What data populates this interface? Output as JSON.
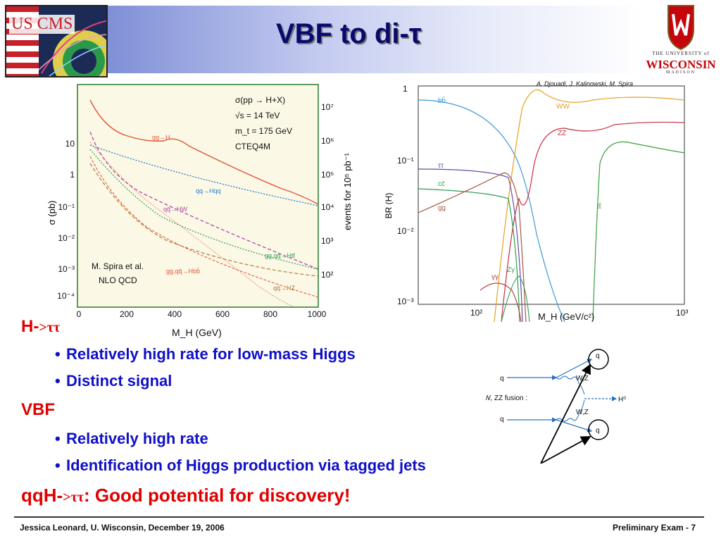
{
  "slide": {
    "title": "VBF to di-τ",
    "logo_left_text": "US CMS",
    "logo_right_line1": "THE UNIVERSITY of",
    "logo_right_line2": "WISCONSIN",
    "logo_right_line3": "MADISON"
  },
  "left_plot": {
    "legend_lines": [
      "σ(pp → H+X)",
      "√s = 14 TeV",
      "m_t = 175 GeV",
      "CTEQ4M"
    ],
    "credit_lines": [
      "M. Spira et al.",
      "NLO  QCD"
    ],
    "y_label": "σ (pb)",
    "y2_label": "events for 10⁵ pb⁻¹",
    "x_label": "M_H (GeV)",
    "x_ticks": [
      "0",
      "200",
      "400",
      "600",
      "800",
      "1000"
    ],
    "y_ticks": [
      "10",
      "1",
      "10⁻¹",
      "10⁻²",
      "10⁻³",
      "10⁻⁴"
    ],
    "y2_ticks": [
      "10⁷",
      "10⁶",
      "10⁵",
      "10⁴",
      "10³",
      "10²"
    ],
    "curve_labels": [
      "gg→H",
      "qq→Hqq",
      "qq̄→HW",
      "gg,qq̄→Htt̄",
      "gg,qq̄→Hbb̄",
      "qq̄→HZ"
    ],
    "colors": {
      "bg": "#fbf8e6",
      "frame": "#2a7a2a",
      "red": "#e0563a",
      "blue": "#2a78c8",
      "purple": "#b04aa8",
      "green": "#2aa050",
      "brown": "#b07a3a"
    }
  },
  "right_plot": {
    "credit": "A. Djouadi,  J. Kalinowski,  M. Spira",
    "y_label": "BR (H)",
    "x_label": "M_H  (GeV/c²)",
    "y_ticks": [
      "1",
      "10⁻¹",
      "10⁻²",
      "10⁻³"
    ],
    "x_ticks": [
      "10²",
      "10³"
    ],
    "channel_labels": [
      "bb̄",
      "WW",
      "ZZ",
      "ττ",
      "cc̄",
      "gg",
      "tt̄",
      "Zγ",
      "γγ"
    ],
    "colors": {
      "bb": "#3a9ad8",
      "WW": "#e8a020",
      "ZZ": "#c83040",
      "tautau": "#6a4aa8",
      "cc": "#2aa050",
      "gg": "#a05a40",
      "tt": "#3aa040",
      "Zgamma": "#40a060",
      "gammagamma": "#c04040"
    }
  },
  "bullets": {
    "heading1_prefix": "H-",
    "heading1_symbol": ">ττ",
    "item1": "Relatively high rate for low-mass Higgs",
    "item2": "Distinct signal",
    "heading2": "VBF",
    "item3": "Relatively high rate",
    "item4": "Identification of Higgs production via tagged jets",
    "conclusion_prefix": "qqH-",
    "conclusion_symbol": ">ττ",
    "conclusion_text": ": Good potential for discovery!"
  },
  "diagram": {
    "label": "WW, ZZ fusion :",
    "q_in_top": "q",
    "q_in_bottom": "q",
    "q_out_top": "q",
    "q_out_bottom": "q",
    "boson_top": "W,Z",
    "boson_bottom": "W,Z",
    "higgs": "H⁰"
  },
  "footer": {
    "left": "Jessica Leonard, U. Wisconsin, December 19, 2006",
    "right": "Preliminary Exam -  7"
  }
}
